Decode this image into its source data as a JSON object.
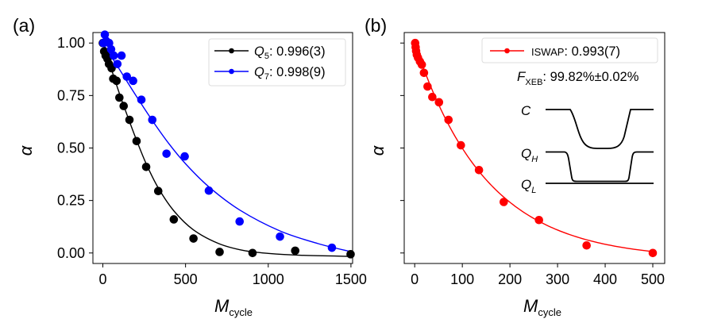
{
  "chart_data": [
    {
      "type": "scatter",
      "panel_label": "(a)",
      "xlabel_main": "M",
      "xlabel_sub": "cycle",
      "ylabel": "α",
      "xlim": [
        -60,
        1510
      ],
      "ylim": [
        -0.05,
        1.05
      ],
      "xticks": [
        0,
        500,
        1000,
        1500
      ],
      "xtick_labels": [
        "0",
        "500",
        "1000",
        "1500"
      ],
      "yticks": [
        0,
        0.25,
        0.5,
        0.75,
        1.0
      ],
      "ytick_labels": [
        "0.00",
        "0.25",
        "0.50",
        "0.75",
        "1.00"
      ],
      "grid": false,
      "legend_position": "top-right",
      "series": [
        {
          "name": "Q5",
          "legend_main": "Q",
          "legend_sub": "5",
          "legend_value": ": 0.996(3)",
          "color": "#000000",
          "points": [
            [
              0,
              1.0
            ],
            [
              8,
              0.96
            ],
            [
              17,
              0.94
            ],
            [
              28,
              0.925
            ],
            [
              37,
              0.9
            ],
            [
              53,
              0.88
            ],
            [
              63,
              0.83
            ],
            [
              83,
              0.82
            ],
            [
              100,
              0.74
            ],
            [
              126,
              0.7
            ],
            [
              161,
              0.634
            ],
            [
              204,
              0.533
            ],
            [
              262,
              0.41
            ],
            [
              335,
              0.295
            ],
            [
              429,
              0.16
            ],
            [
              548,
              0.069
            ],
            [
              706,
              0.005
            ],
            [
              905,
              0.0
            ],
            [
              1163,
              0.011
            ],
            [
              1498,
              -0.006
            ]
          ],
          "fit": [
            [
              0,
              1.0
            ],
            [
              50,
              0.88
            ],
            [
              100,
              0.76
            ],
            [
              150,
              0.65
            ],
            [
              200,
              0.545
            ],
            [
              262,
              0.425
            ],
            [
              335,
              0.31
            ],
            [
              430,
              0.2
            ],
            [
              548,
              0.11
            ],
            [
              700,
              0.045
            ],
            [
              850,
              0.012
            ],
            [
              1000,
              -0.002
            ],
            [
              1200,
              -0.011
            ],
            [
              1500,
              -0.016
            ]
          ]
        },
        {
          "name": "Q7",
          "legend_main": "Q",
          "legend_sub": "7",
          "legend_value": ": 0.998(9)",
          "color": "#0000ff",
          "points": [
            [
              3,
              1.0
            ],
            [
              12,
              1.04
            ],
            [
              20,
              1.01
            ],
            [
              38,
              1.0
            ],
            [
              50,
              0.97
            ],
            [
              66,
              0.94
            ],
            [
              88,
              0.9
            ],
            [
              113,
              0.94
            ],
            [
              145,
              0.84
            ],
            [
              183,
              0.82
            ],
            [
              233,
              0.73
            ],
            [
              299,
              0.634
            ],
            [
              385,
              0.473
            ],
            [
              495,
              0.46
            ],
            [
              641,
              0.297
            ],
            [
              827,
              0.15
            ],
            [
              1071,
              0.078
            ],
            [
              1385,
              0.025
            ]
          ],
          "fit": [
            [
              0,
              1.0
            ],
            [
              100,
              0.875
            ],
            [
              200,
              0.75
            ],
            [
              300,
              0.63
            ],
            [
              400,
              0.52
            ],
            [
              500,
              0.425
            ],
            [
              641,
              0.315
            ],
            [
              827,
              0.205
            ],
            [
              1071,
              0.105
            ],
            [
              1300,
              0.045
            ],
            [
              1500,
              0.006
            ]
          ]
        }
      ]
    },
    {
      "type": "scatter",
      "panel_label": "(b)",
      "xlabel_main": "M",
      "xlabel_sub": "cycle",
      "ylabel": "α",
      "xlim": [
        -22,
        525
      ],
      "ylim": [
        -0.05,
        1.05
      ],
      "xticks": [
        0,
        100,
        200,
        300,
        400,
        500
      ],
      "xtick_labels": [
        "0",
        "100",
        "200",
        "300",
        "400",
        "500"
      ],
      "yticks": [
        0,
        0.25,
        0.5,
        0.75,
        1.0
      ],
      "grid": false,
      "legend_position": "top-right",
      "series": [
        {
          "name": "ISWAP",
          "legend_main": "ISWAP",
          "legend_value": ": 0.993(7)",
          "color": "#ff0000",
          "points": [
            [
              1,
              1.0
            ],
            [
              2,
              0.98
            ],
            [
              3,
              0.962
            ],
            [
              4.5,
              0.944
            ],
            [
              7,
              0.93
            ],
            [
              11,
              0.912
            ],
            [
              15,
              0.897
            ],
            [
              19.5,
              0.858
            ],
            [
              27,
              0.793
            ],
            [
              37,
              0.743
            ],
            [
              51,
              0.718
            ],
            [
              71,
              0.634
            ],
            [
              97,
              0.513
            ],
            [
              135,
              0.395
            ],
            [
              187,
              0.243
            ],
            [
              261,
              0.157
            ],
            [
              361,
              0.036
            ],
            [
              500,
              0.0
            ]
          ],
          "fit_model": {
            "A": 1.03,
            "tau": 150,
            "B": -0.03
          }
        }
      ],
      "annotation": {
        "main": "F",
        "sub": "XEB",
        "value": ": 99.82%±0.02%"
      },
      "inset": {
        "labels": [
          {
            "main": "C",
            "sub": ""
          },
          {
            "main": "Q",
            "sub": "H"
          },
          {
            "main": "Q",
            "sub": "L"
          }
        ]
      }
    }
  ]
}
